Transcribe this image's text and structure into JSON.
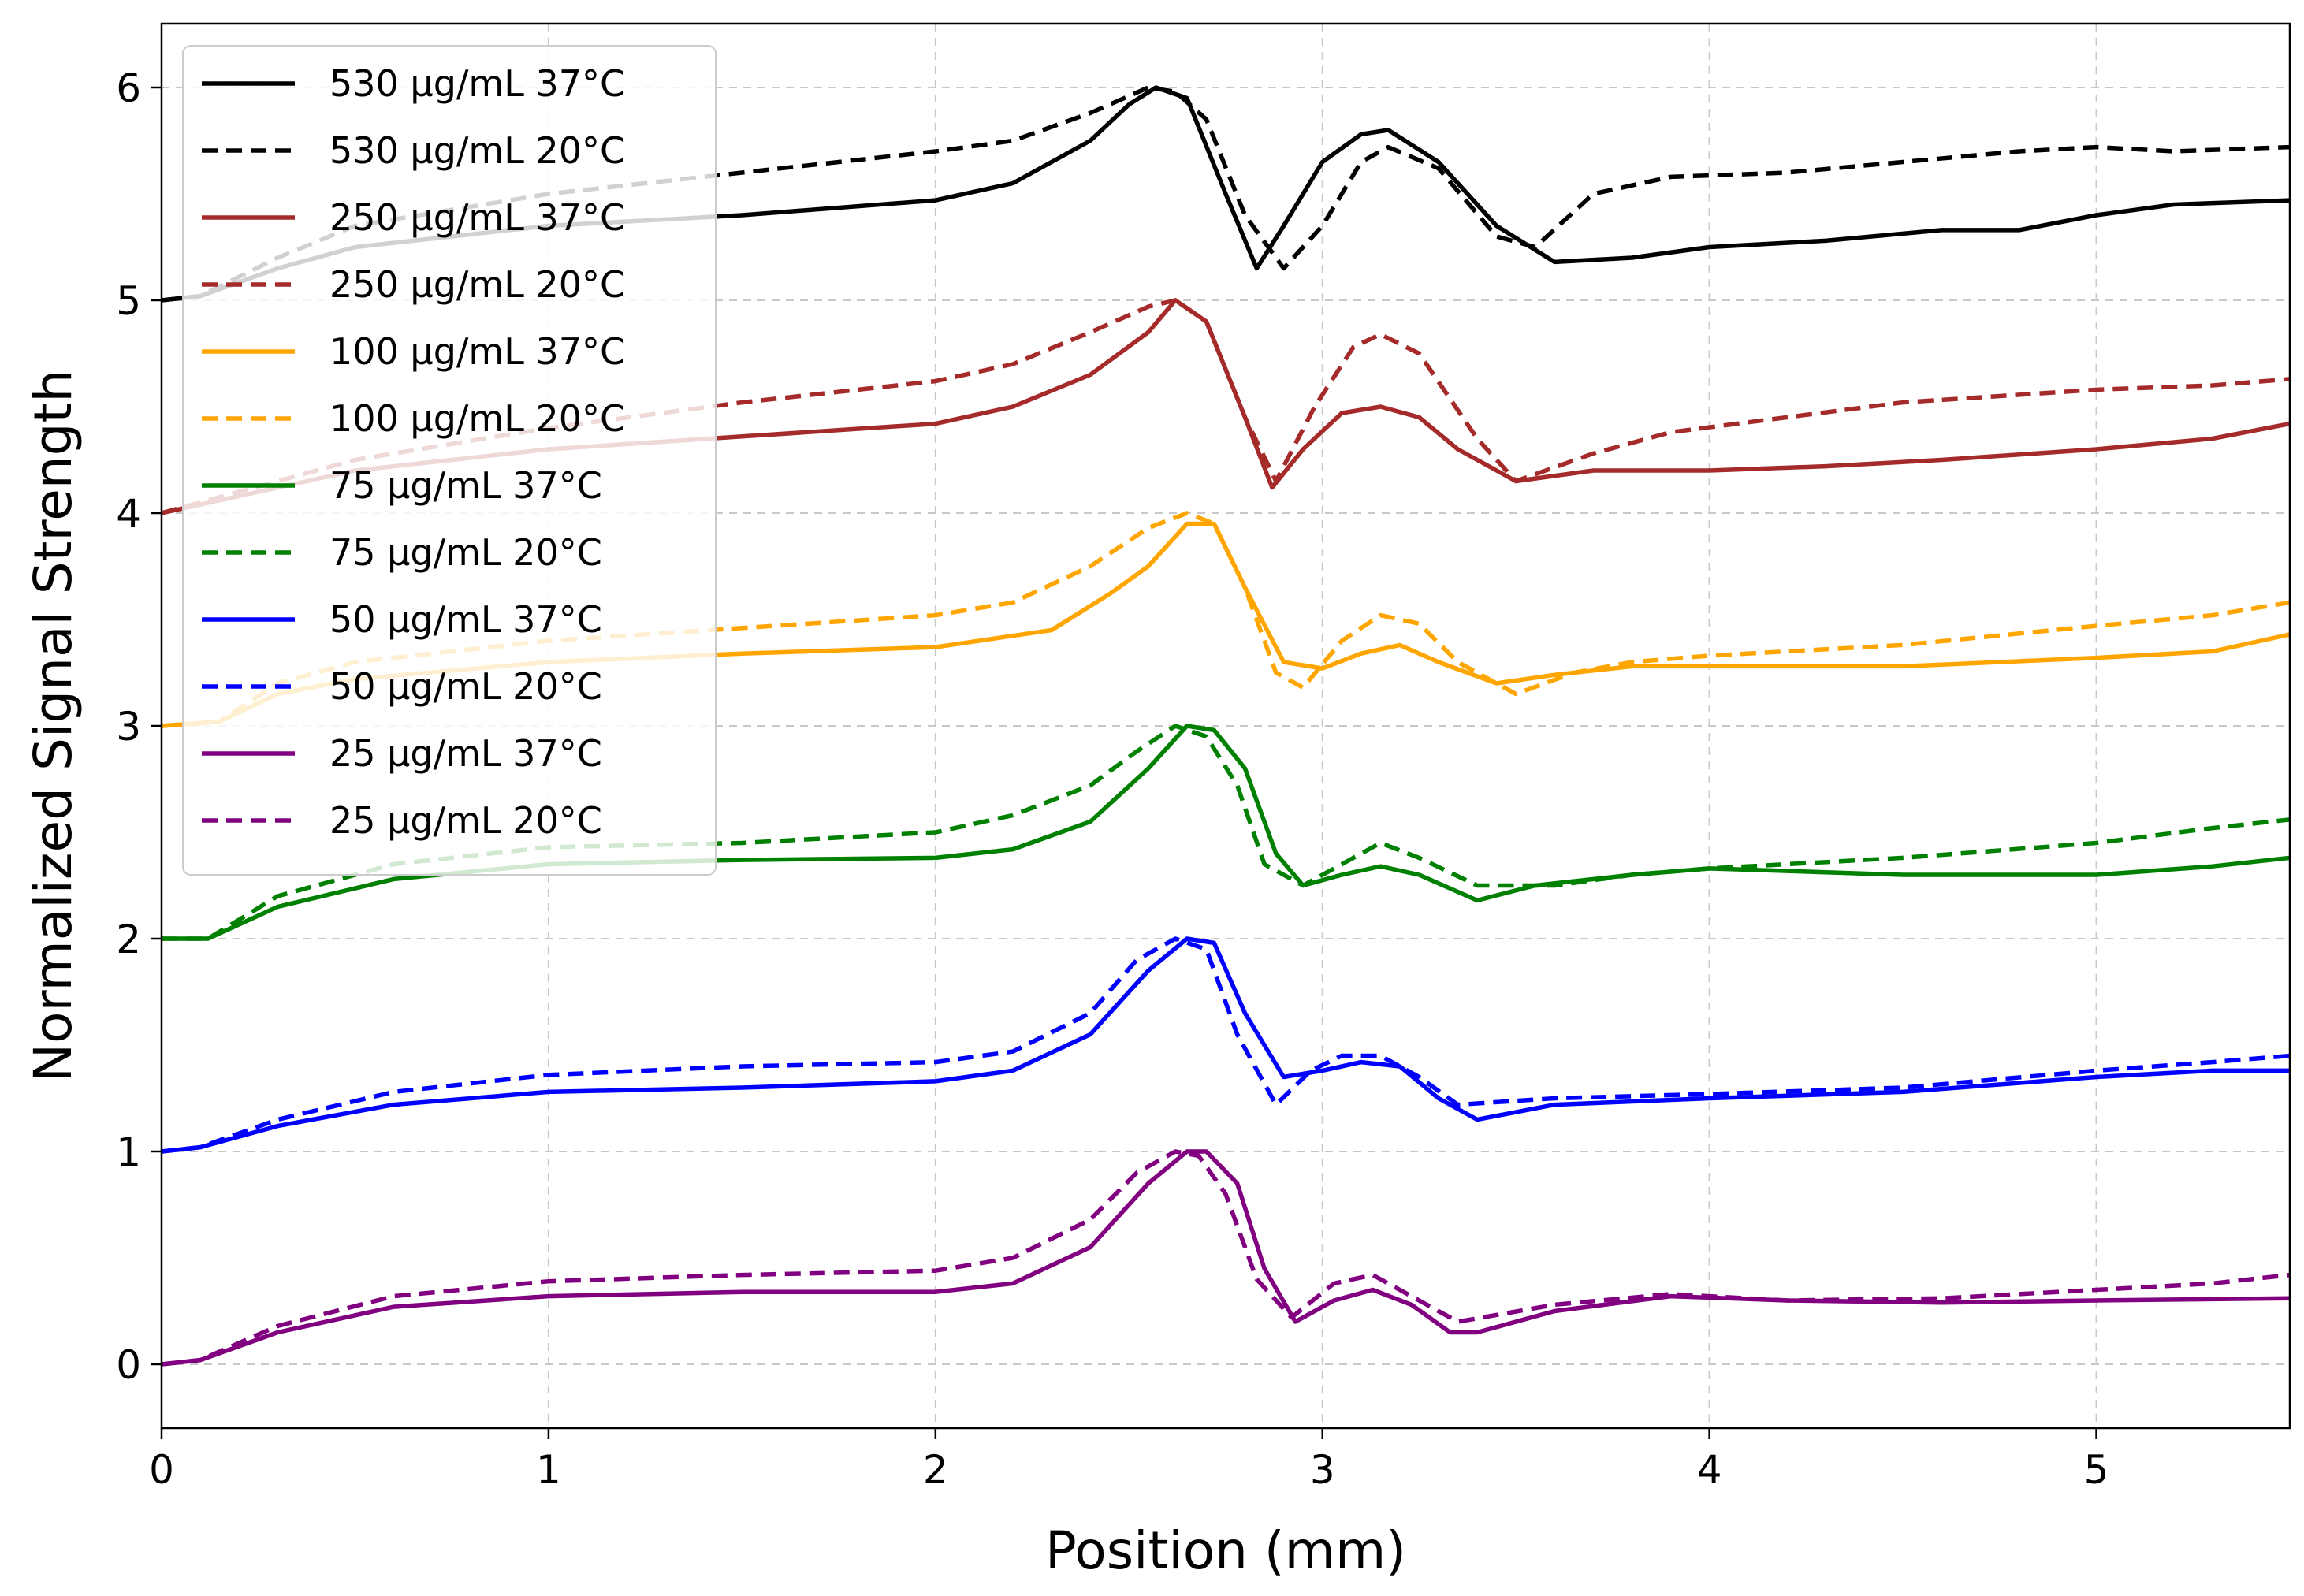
{
  "chart_data": {
    "type": "line",
    "title": "",
    "xlabel": "Position (mm)",
    "ylabel": "Normalized Signal Strength",
    "xlim": [
      0,
      5.5
    ],
    "ylim": [
      -0.3,
      6.3
    ],
    "xticks": [
      0,
      1,
      2,
      3,
      4,
      5
    ],
    "xtick_labels": [
      "0",
      "1",
      "2",
      "3",
      "4",
      "5"
    ],
    "yticks": [
      0,
      1,
      2,
      3,
      4,
      5,
      6
    ],
    "ytick_labels": [
      "0",
      "1",
      "2",
      "3",
      "4",
      "5",
      "6"
    ],
    "grid": true,
    "legend_position": "top-left",
    "series": [
      {
        "name": "530 µg/mL 37°C",
        "color": "#000000",
        "style": "solid",
        "x": [
          0,
          0.1,
          0.3,
          0.5,
          1.0,
          1.5,
          2.0,
          2.2,
          2.4,
          2.5,
          2.57,
          2.65,
          2.75,
          2.83,
          2.9,
          3.0,
          3.1,
          3.17,
          3.3,
          3.45,
          3.6,
          3.8,
          4.0,
          4.3,
          4.6,
          4.8,
          5.0,
          5.2,
          5.5
        ],
        "y": [
          5.0,
          5.02,
          5.15,
          5.25,
          5.35,
          5.4,
          5.47,
          5.55,
          5.75,
          5.92,
          6.0,
          5.95,
          5.5,
          5.15,
          5.35,
          5.65,
          5.78,
          5.8,
          5.65,
          5.35,
          5.18,
          5.2,
          5.25,
          5.28,
          5.33,
          5.33,
          5.4,
          5.45,
          5.47
        ]
      },
      {
        "name": "530 µg/mL 20°C",
        "color": "#000000",
        "style": "dashed",
        "x": [
          0,
          0.1,
          0.3,
          0.5,
          1.0,
          1.5,
          2.0,
          2.2,
          2.4,
          2.55,
          2.62,
          2.7,
          2.8,
          2.9,
          3.0,
          3.1,
          3.17,
          3.3,
          3.45,
          3.55,
          3.7,
          3.9,
          4.2,
          4.5,
          4.8,
          5.0,
          5.2,
          5.5
        ],
        "y": [
          5.0,
          5.02,
          5.2,
          5.35,
          5.5,
          5.6,
          5.7,
          5.75,
          5.88,
          6.0,
          5.98,
          5.85,
          5.4,
          5.15,
          5.35,
          5.65,
          5.72,
          5.62,
          5.3,
          5.25,
          5.5,
          5.58,
          5.6,
          5.65,
          5.7,
          5.72,
          5.7,
          5.72
        ]
      },
      {
        "name": "250 µg/mL 37°C",
        "color": "#a52a2a",
        "style": "solid",
        "x": [
          0,
          0.2,
          0.5,
          1.0,
          1.5,
          2.0,
          2.2,
          2.4,
          2.55,
          2.62,
          2.7,
          2.8,
          2.87,
          2.95,
          3.05,
          3.15,
          3.25,
          3.35,
          3.5,
          3.7,
          4.0,
          4.3,
          4.6,
          5.0,
          5.3,
          5.5
        ],
        "y": [
          4.0,
          4.08,
          4.2,
          4.3,
          4.36,
          4.42,
          4.5,
          4.65,
          4.85,
          5.0,
          4.9,
          4.45,
          4.12,
          4.3,
          4.47,
          4.5,
          4.45,
          4.3,
          4.15,
          4.2,
          4.2,
          4.22,
          4.25,
          4.3,
          4.35,
          4.42
        ]
      },
      {
        "name": "250 µg/mL 20°C",
        "color": "#a52a2a",
        "style": "dashed",
        "x": [
          0,
          0.2,
          0.5,
          1.0,
          1.5,
          2.0,
          2.2,
          2.4,
          2.55,
          2.62,
          2.7,
          2.8,
          2.88,
          2.98,
          3.08,
          3.15,
          3.25,
          3.4,
          3.5,
          3.7,
          3.9,
          4.2,
          4.5,
          5.0,
          5.3,
          5.5
        ],
        "y": [
          4.0,
          4.1,
          4.25,
          4.4,
          4.52,
          4.62,
          4.7,
          4.85,
          4.97,
          5.0,
          4.9,
          4.45,
          4.15,
          4.5,
          4.78,
          4.84,
          4.75,
          4.35,
          4.15,
          4.28,
          4.38,
          4.45,
          4.52,
          4.58,
          4.6,
          4.63
        ]
      },
      {
        "name": "100 µg/mL 37°C",
        "color": "#ffa500",
        "style": "solid",
        "x": [
          0,
          0.15,
          0.3,
          0.5,
          1.0,
          1.5,
          2.0,
          2.3,
          2.45,
          2.55,
          2.65,
          2.72,
          2.8,
          2.9,
          3.0,
          3.1,
          3.2,
          3.3,
          3.45,
          3.6,
          3.8,
          4.0,
          4.5,
          5.0,
          5.3,
          5.5
        ],
        "y": [
          3.0,
          3.02,
          3.15,
          3.22,
          3.3,
          3.34,
          3.37,
          3.45,
          3.62,
          3.75,
          3.95,
          3.95,
          3.65,
          3.3,
          3.27,
          3.34,
          3.38,
          3.3,
          3.2,
          3.24,
          3.28,
          3.28,
          3.28,
          3.32,
          3.35,
          3.43
        ]
      },
      {
        "name": "100 µg/mL 20°C",
        "color": "#ffa500",
        "style": "dashed",
        "x": [
          0,
          0.15,
          0.3,
          0.5,
          1.0,
          1.5,
          2.0,
          2.2,
          2.4,
          2.55,
          2.65,
          2.72,
          2.8,
          2.88,
          2.95,
          3.05,
          3.15,
          3.25,
          3.35,
          3.5,
          3.65,
          3.8,
          4.0,
          4.5,
          5.0,
          5.3,
          5.5
        ],
        "y": [
          3.0,
          3.02,
          3.2,
          3.3,
          3.4,
          3.46,
          3.52,
          3.58,
          3.75,
          3.93,
          4.0,
          3.95,
          3.65,
          3.25,
          3.18,
          3.4,
          3.52,
          3.48,
          3.3,
          3.15,
          3.25,
          3.3,
          3.33,
          3.38,
          3.47,
          3.52,
          3.58
        ]
      },
      {
        "name": "75 µg/mL 37°C",
        "color": "#008000",
        "style": "solid",
        "x": [
          0,
          0.12,
          0.3,
          0.6,
          1.0,
          1.5,
          2.0,
          2.2,
          2.4,
          2.55,
          2.65,
          2.72,
          2.8,
          2.88,
          2.95,
          3.05,
          3.15,
          3.25,
          3.4,
          3.55,
          3.8,
          4.0,
          4.5,
          5.0,
          5.3,
          5.5
        ],
        "y": [
          2.0,
          2.0,
          2.15,
          2.28,
          2.35,
          2.37,
          2.38,
          2.42,
          2.55,
          2.8,
          3.0,
          2.98,
          2.8,
          2.4,
          2.25,
          2.3,
          2.34,
          2.3,
          2.18,
          2.25,
          2.3,
          2.33,
          2.3,
          2.3,
          2.34,
          2.38
        ]
      },
      {
        "name": "75 µg/mL 20°C",
        "color": "#008000",
        "style": "dashed",
        "x": [
          0,
          0.12,
          0.3,
          0.6,
          1.0,
          1.5,
          2.0,
          2.2,
          2.4,
          2.52,
          2.62,
          2.7,
          2.78,
          2.85,
          2.95,
          3.05,
          3.15,
          3.25,
          3.4,
          3.6,
          3.8,
          4.0,
          4.5,
          5.0,
          5.3,
          5.5
        ],
        "y": [
          2.0,
          2.0,
          2.2,
          2.35,
          2.43,
          2.45,
          2.5,
          2.58,
          2.72,
          2.88,
          3.0,
          2.95,
          2.72,
          2.35,
          2.25,
          2.35,
          2.45,
          2.38,
          2.25,
          2.25,
          2.3,
          2.33,
          2.38,
          2.45,
          2.52,
          2.56
        ]
      },
      {
        "name": "50 µg/mL 37°C",
        "color": "#0000ff",
        "style": "solid",
        "x": [
          0,
          0.1,
          0.3,
          0.6,
          1.0,
          1.5,
          2.0,
          2.2,
          2.4,
          2.55,
          2.65,
          2.72,
          2.8,
          2.9,
          3.0,
          3.1,
          3.2,
          3.3,
          3.4,
          3.6,
          4.0,
          4.5,
          5.0,
          5.3,
          5.5
        ],
        "y": [
          1.0,
          1.02,
          1.12,
          1.22,
          1.28,
          1.3,
          1.33,
          1.38,
          1.55,
          1.85,
          2.0,
          1.98,
          1.65,
          1.35,
          1.38,
          1.42,
          1.4,
          1.25,
          1.15,
          1.22,
          1.25,
          1.28,
          1.35,
          1.38,
          1.38
        ]
      },
      {
        "name": "50 µg/mL 20°C",
        "color": "#0000ff",
        "style": "dashed",
        "x": [
          0,
          0.1,
          0.3,
          0.6,
          1.0,
          1.5,
          2.0,
          2.2,
          2.4,
          2.52,
          2.62,
          2.7,
          2.78,
          2.88,
          2.97,
          3.05,
          3.15,
          3.25,
          3.35,
          3.6,
          4.0,
          4.5,
          5.0,
          5.3,
          5.5
        ],
        "y": [
          1.0,
          1.02,
          1.15,
          1.28,
          1.36,
          1.4,
          1.42,
          1.47,
          1.65,
          1.9,
          2.0,
          1.95,
          1.55,
          1.22,
          1.38,
          1.45,
          1.45,
          1.35,
          1.22,
          1.25,
          1.27,
          1.3,
          1.38,
          1.42,
          1.45
        ]
      },
      {
        "name": "25 µg/mL 37°C",
        "color": "#800080",
        "style": "solid",
        "x": [
          0,
          0.1,
          0.3,
          0.6,
          1.0,
          1.5,
          2.0,
          2.2,
          2.4,
          2.55,
          2.65,
          2.7,
          2.78,
          2.85,
          2.93,
          3.03,
          3.13,
          3.23,
          3.33,
          3.4,
          3.6,
          3.9,
          4.2,
          4.6,
          5.0,
          5.5
        ],
        "y": [
          0.0,
          0.02,
          0.15,
          0.27,
          0.32,
          0.34,
          0.34,
          0.38,
          0.55,
          0.85,
          1.0,
          1.0,
          0.85,
          0.45,
          0.2,
          0.3,
          0.35,
          0.28,
          0.15,
          0.15,
          0.25,
          0.32,
          0.3,
          0.29,
          0.3,
          0.31
        ]
      },
      {
        "name": "25 µg/mL 20°C",
        "color": "#800080",
        "style": "dashed",
        "x": [
          0,
          0.1,
          0.3,
          0.6,
          1.0,
          1.5,
          2.0,
          2.2,
          2.4,
          2.52,
          2.62,
          2.68,
          2.75,
          2.83,
          2.92,
          3.03,
          3.13,
          3.23,
          3.35,
          3.6,
          3.9,
          4.2,
          4.6,
          5.0,
          5.3,
          5.5
        ],
        "y": [
          0.0,
          0.02,
          0.18,
          0.32,
          0.39,
          0.42,
          0.44,
          0.5,
          0.68,
          0.9,
          1.0,
          0.98,
          0.8,
          0.4,
          0.22,
          0.38,
          0.42,
          0.32,
          0.2,
          0.28,
          0.33,
          0.3,
          0.31,
          0.35,
          0.38,
          0.42
        ]
      }
    ]
  }
}
